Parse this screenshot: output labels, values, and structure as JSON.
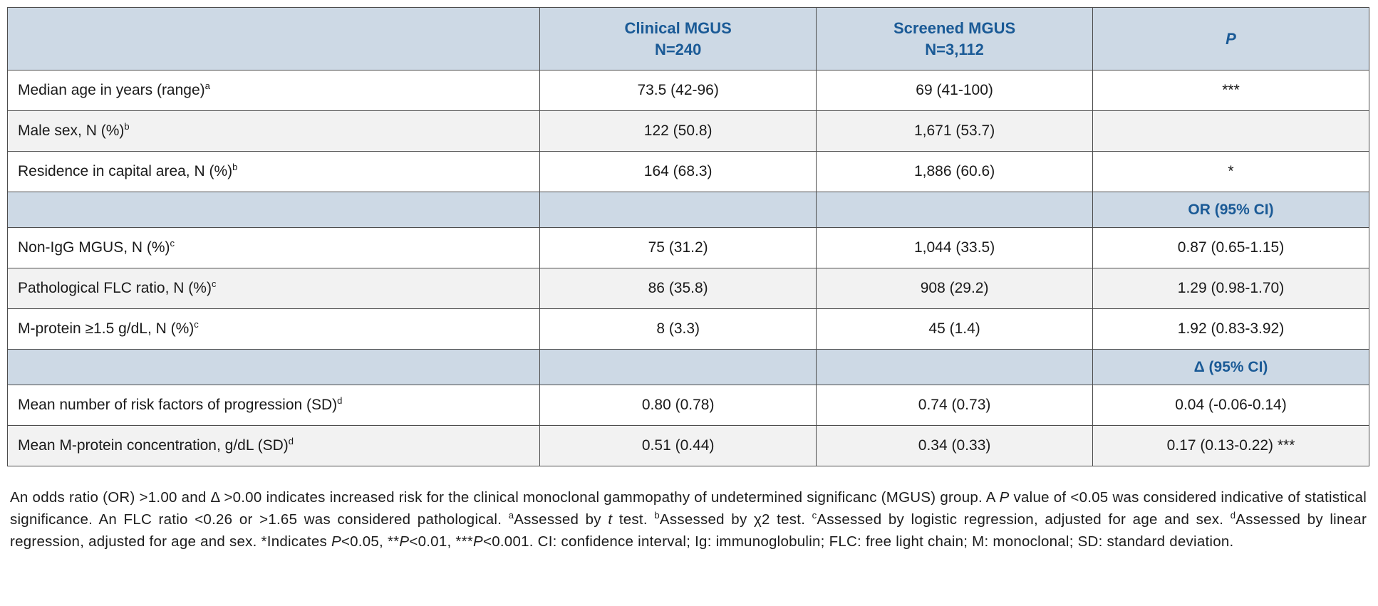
{
  "colors": {
    "header_bg": "#cdd9e5",
    "header_text": "#1a5a96",
    "stripe_bg": "#f2f2f2",
    "border": "#4d4d4d",
    "body_text": "#1a1a1a"
  },
  "table": {
    "header": {
      "col0": "",
      "clinical_line1": "Clinical MGUS",
      "clinical_line2": "N=240",
      "screened_line1": "Screened MGUS",
      "screened_line2": "N=3,112",
      "p": "P"
    },
    "sections": [
      {
        "p_label": "OR (95% CI)"
      },
      {
        "p_label": "Δ (95% CI)"
      }
    ],
    "rows": [
      {
        "label": "Median age in years (range)",
        "sup": "a",
        "clinical": "73.5 (42-96)",
        "screened": "69 (41-100)",
        "p": "***"
      },
      {
        "label": "Male sex, N (%)",
        "sup": "b",
        "clinical": "122 (50.8)",
        "screened": "1,671 (53.7)",
        "p": ""
      },
      {
        "label": "Residence in capital area, N (%)",
        "sup": "b",
        "clinical": "164 (68.3)",
        "screened": "1,886 (60.6)",
        "p": "*"
      },
      {
        "label": "Non-IgG MGUS, N (%)",
        "sup": "c",
        "clinical": "75 (31.2)",
        "screened": "1,044 (33.5)",
        "p": "0.87 (0.65-1.15)"
      },
      {
        "label": "Pathological FLC ratio, N (%)",
        "sup": "c",
        "clinical": "86 (35.8)",
        "screened": "908 (29.2)",
        "p": "1.29 (0.98-1.70)"
      },
      {
        "label": "M-protein ≥1.5 g/dL, N (%)",
        "sup": "c",
        "clinical": "8 (3.3)",
        "screened": "45 (1.4)",
        "p": "1.92 (0.83-3.92)"
      },
      {
        "label": "Mean number of risk factors of progression (SD)",
        "sup": "d",
        "clinical": "0.80 (0.78)",
        "screened": "0.74 (0.73)",
        "p": "0.04 (-0.06-0.14)"
      },
      {
        "label": "Mean M-protein concentration, g/dL (SD)",
        "sup": "d",
        "clinical": "0.51 (0.44)",
        "screened": "0.34 (0.33)",
        "p": "0.17 (0.13-0.22) ***"
      }
    ]
  },
  "footnote": {
    "segments": [
      {
        "text": "An odds ratio (OR) >1.00 and Δ >0.00 indicates increased risk for the clinical monoclonal gammopathy of undetermined significanc (MGUS) group. A ",
        "style": "normal"
      },
      {
        "text": "P",
        "style": "italic"
      },
      {
        "text": " value of <0.05 was considered indicative of statistical significance. An FLC ratio <0.26 or >1.65 was considered pathological. ",
        "style": "normal"
      },
      {
        "text": "a",
        "style": "sup"
      },
      {
        "text": "Assessed by ",
        "style": "normal"
      },
      {
        "text": "t",
        "style": "italic"
      },
      {
        "text": " test. ",
        "style": "normal"
      },
      {
        "text": "b",
        "style": "sup"
      },
      {
        "text": "Assessed by χ2 test. ",
        "style": "normal"
      },
      {
        "text": "c",
        "style": "sup"
      },
      {
        "text": "Assessed by logistic regression, adjusted for age and sex. ",
        "style": "normal"
      },
      {
        "text": "d",
        "style": "sup"
      },
      {
        "text": "Assessed by linear regression, adjusted for age and sex. *Indicates ",
        "style": "normal"
      },
      {
        "text": "P",
        "style": "italic"
      },
      {
        "text": "<0.05, **",
        "style": "normal"
      },
      {
        "text": "P",
        "style": "italic"
      },
      {
        "text": "<0.01, ***",
        "style": "normal"
      },
      {
        "text": "P",
        "style": "italic"
      },
      {
        "text": "<0.001. CI: confidence interval; Ig: immunoglobulin; FLC: free light chain; M: monoclonal; SD: standard deviation.",
        "style": "normal"
      }
    ]
  }
}
